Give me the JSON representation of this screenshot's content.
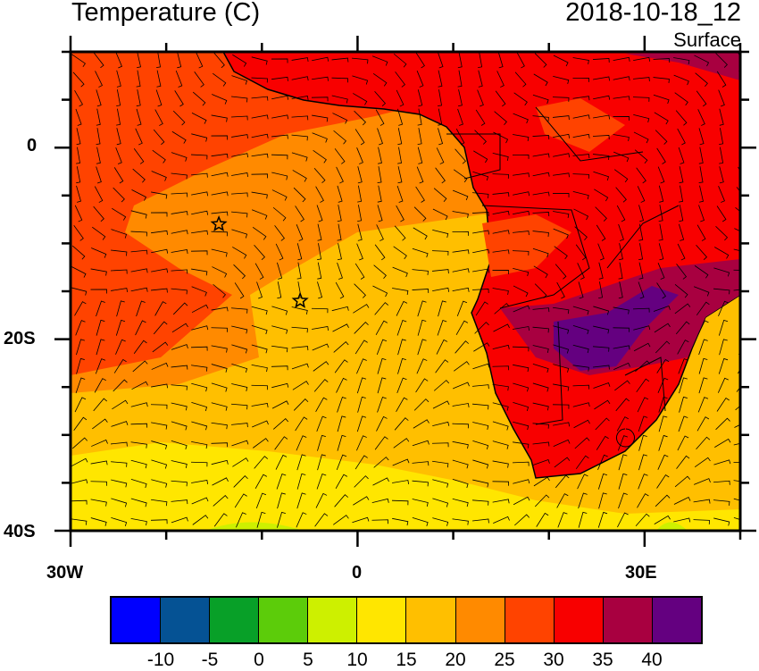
{
  "header": {
    "title": "Temperature (C)",
    "datetime": "2018-10-18_12",
    "level": "Surface"
  },
  "axes": {
    "x_labels": [
      "30W",
      "0",
      "30E"
    ],
    "y_labels": [
      "0",
      "20S",
      "40S"
    ],
    "lon_range": [
      -30,
      40
    ],
    "lat_range": [
      -40,
      10
    ]
  },
  "markers": [
    {
      "name": "star",
      "lon": -14.5,
      "lat": -8
    },
    {
      "name": "star",
      "lon": -6,
      "lat": -16
    }
  ],
  "colorbar": {
    "colors": [
      "#0000ff",
      "#055294",
      "#08a028",
      "#5ccc0a",
      "#cdf000",
      "#ffe600",
      "#ffbf00",
      "#ff8a00",
      "#ff4300",
      "#f80000",
      "#a80040",
      "#640080"
    ],
    "labels": [
      "-10",
      "-5",
      "0",
      "5",
      "10",
      "15",
      "20",
      "25",
      "30",
      "35",
      "40"
    ]
  }
}
